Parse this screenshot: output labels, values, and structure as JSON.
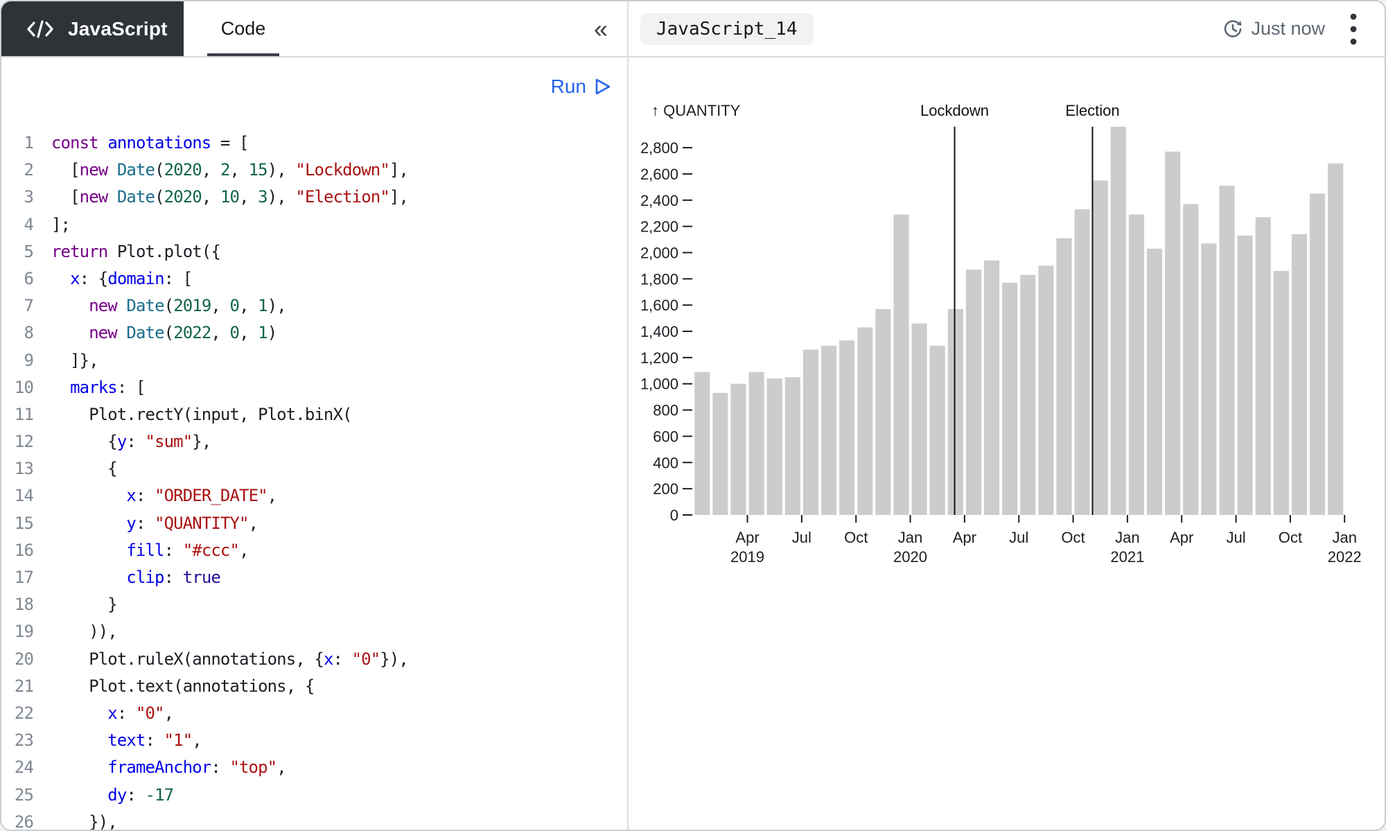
{
  "header": {
    "badge_label": "JavaScript",
    "tab_label": "Code",
    "collapse_glyph": "«",
    "cell_title": "JavaScript_14",
    "timestamp": "Just now"
  },
  "editor": {
    "run_label": "Run",
    "lines": [
      {
        "n": "1",
        "t": [
          [
            "k",
            "const"
          ],
          [
            "p",
            " "
          ],
          [
            "b",
            "annotations"
          ],
          [
            "p",
            " = ["
          ]
        ]
      },
      {
        "n": "2",
        "t": [
          [
            "p",
            "  ["
          ],
          [
            "k",
            "new"
          ],
          [
            "p",
            " "
          ],
          [
            "t2",
            "Date"
          ],
          [
            "p",
            "("
          ],
          [
            "num",
            "2020"
          ],
          [
            "p",
            ", "
          ],
          [
            "num",
            "2"
          ],
          [
            "p",
            ", "
          ],
          [
            "num",
            "15"
          ],
          [
            "p",
            "), "
          ],
          [
            "s",
            "\"Lockdown\""
          ],
          [
            "p",
            "],"
          ]
        ]
      },
      {
        "n": "3",
        "t": [
          [
            "p",
            "  ["
          ],
          [
            "k",
            "new"
          ],
          [
            "p",
            " "
          ],
          [
            "t2",
            "Date"
          ],
          [
            "p",
            "("
          ],
          [
            "num",
            "2020"
          ],
          [
            "p",
            ", "
          ],
          [
            "num",
            "10"
          ],
          [
            "p",
            ", "
          ],
          [
            "num",
            "3"
          ],
          [
            "p",
            "), "
          ],
          [
            "s",
            "\"Election\""
          ],
          [
            "p",
            "],"
          ]
        ]
      },
      {
        "n": "4",
        "t": [
          [
            "p",
            "];"
          ]
        ]
      },
      {
        "n": "5",
        "t": [
          [
            "k",
            "return"
          ],
          [
            "p",
            " Plot.plot({"
          ]
        ]
      },
      {
        "n": "6",
        "t": [
          [
            "p",
            "  "
          ],
          [
            "b",
            "x"
          ],
          [
            "p",
            ": {"
          ],
          [
            "b",
            "domain"
          ],
          [
            "p",
            ": ["
          ]
        ]
      },
      {
        "n": "7",
        "t": [
          [
            "p",
            "    "
          ],
          [
            "k",
            "new"
          ],
          [
            "p",
            " "
          ],
          [
            "t2",
            "Date"
          ],
          [
            "p",
            "("
          ],
          [
            "num",
            "2019"
          ],
          [
            "p",
            ", "
          ],
          [
            "num",
            "0"
          ],
          [
            "p",
            ", "
          ],
          [
            "num",
            "1"
          ],
          [
            "p",
            "),"
          ]
        ]
      },
      {
        "n": "8",
        "t": [
          [
            "p",
            "    "
          ],
          [
            "k",
            "new"
          ],
          [
            "p",
            " "
          ],
          [
            "t2",
            "Date"
          ],
          [
            "p",
            "("
          ],
          [
            "num",
            "2022"
          ],
          [
            "p",
            ", "
          ],
          [
            "num",
            "0"
          ],
          [
            "p",
            ", "
          ],
          [
            "num",
            "1"
          ],
          [
            "p",
            ")"
          ]
        ]
      },
      {
        "n": "9",
        "t": [
          [
            "p",
            "  ]},"
          ]
        ]
      },
      {
        "n": "10",
        "t": [
          [
            "p",
            "  "
          ],
          [
            "b",
            "marks"
          ],
          [
            "p",
            ": ["
          ]
        ]
      },
      {
        "n": "11",
        "t": [
          [
            "p",
            "    Plot.rectY(input, Plot.binX("
          ]
        ]
      },
      {
        "n": "12",
        "t": [
          [
            "p",
            "      {"
          ],
          [
            "b",
            "y"
          ],
          [
            "p",
            ": "
          ],
          [
            "s",
            "\"sum\""
          ],
          [
            "p",
            "},"
          ]
        ]
      },
      {
        "n": "13",
        "t": [
          [
            "p",
            "      {"
          ]
        ]
      },
      {
        "n": "14",
        "t": [
          [
            "p",
            "        "
          ],
          [
            "b",
            "x"
          ],
          [
            "p",
            ": "
          ],
          [
            "s",
            "\"ORDER_DATE\""
          ],
          [
            "p",
            ","
          ]
        ]
      },
      {
        "n": "15",
        "t": [
          [
            "p",
            "        "
          ],
          [
            "b",
            "y"
          ],
          [
            "p",
            ": "
          ],
          [
            "s",
            "\"QUANTITY\""
          ],
          [
            "p",
            ","
          ]
        ]
      },
      {
        "n": "16",
        "t": [
          [
            "p",
            "        "
          ],
          [
            "b",
            "fill"
          ],
          [
            "p",
            ": "
          ],
          [
            "s",
            "\"#ccc\""
          ],
          [
            "p",
            ","
          ]
        ]
      },
      {
        "n": "17",
        "t": [
          [
            "p",
            "        "
          ],
          [
            "b",
            "clip"
          ],
          [
            "p",
            ": "
          ],
          [
            "a",
            "true"
          ]
        ]
      },
      {
        "n": "18",
        "t": [
          [
            "p",
            "      }"
          ]
        ]
      },
      {
        "n": "19",
        "t": [
          [
            "p",
            "    )),"
          ]
        ]
      },
      {
        "n": "20",
        "t": [
          [
            "p",
            "    Plot.ruleX(annotations, {"
          ],
          [
            "b",
            "x"
          ],
          [
            "p",
            ": "
          ],
          [
            "s",
            "\"0\""
          ],
          [
            "p",
            "}),"
          ]
        ]
      },
      {
        "n": "21",
        "t": [
          [
            "p",
            "    Plot.text(annotations, {"
          ]
        ]
      },
      {
        "n": "22",
        "t": [
          [
            "p",
            "      "
          ],
          [
            "b",
            "x"
          ],
          [
            "p",
            ": "
          ],
          [
            "s",
            "\"0\""
          ],
          [
            "p",
            ","
          ]
        ]
      },
      {
        "n": "23",
        "t": [
          [
            "p",
            "      "
          ],
          [
            "b",
            "text"
          ],
          [
            "p",
            ": "
          ],
          [
            "s",
            "\"1\""
          ],
          [
            "p",
            ","
          ]
        ]
      },
      {
        "n": "24",
        "t": [
          [
            "p",
            "      "
          ],
          [
            "b",
            "frameAnchor"
          ],
          [
            "p",
            ": "
          ],
          [
            "s",
            "\"top\""
          ],
          [
            "p",
            ","
          ]
        ]
      },
      {
        "n": "25",
        "t": [
          [
            "p",
            "      "
          ],
          [
            "b",
            "dy"
          ],
          [
            "p",
            ": "
          ],
          [
            "num",
            "-17"
          ]
        ]
      },
      {
        "n": "26",
        "t": [
          [
            "p",
            "    }),"
          ]
        ]
      }
    ]
  },
  "chart_data": {
    "type": "bar",
    "title": "",
    "ylabel": "↑ QUANTITY",
    "bar_fill": "#ccc",
    "bin": "month",
    "x_domain": [
      "2019-01-01",
      "2022-01-01"
    ],
    "ylim": [
      0,
      2960
    ],
    "grid": false,
    "categories": [
      "2019-01",
      "2019-02",
      "2019-03",
      "2019-04",
      "2019-05",
      "2019-06",
      "2019-07",
      "2019-08",
      "2019-09",
      "2019-10",
      "2019-11",
      "2019-12",
      "2020-01",
      "2020-02",
      "2020-03",
      "2020-04",
      "2020-05",
      "2020-06",
      "2020-07",
      "2020-08",
      "2020-09",
      "2020-10",
      "2020-11",
      "2020-12",
      "2021-01",
      "2021-02",
      "2021-03",
      "2021-04",
      "2021-05",
      "2021-06",
      "2021-07",
      "2021-08",
      "2021-09",
      "2021-10",
      "2021-11",
      "2021-12"
    ],
    "values": [
      1090,
      930,
      1000,
      1090,
      1040,
      1050,
      1260,
      1290,
      1330,
      1430,
      1570,
      2290,
      1460,
      1290,
      1570,
      1870,
      1940,
      1770,
      1830,
      1900,
      2110,
      2330,
      2550,
      2960,
      2290,
      2030,
      2770,
      2370,
      2070,
      2510,
      2130,
      2270,
      1860,
      2140,
      2450,
      2680
    ],
    "y_ticks": [
      0,
      200,
      400,
      600,
      800,
      1000,
      1200,
      1400,
      1600,
      1800,
      2000,
      2200,
      2400,
      2600,
      2800
    ],
    "x_ticks": [
      {
        "m": 3,
        "label": "Apr",
        "year": "2019"
      },
      {
        "m": 6,
        "label": "Jul"
      },
      {
        "m": 9,
        "label": "Oct"
      },
      {
        "m": 12,
        "label": "Jan",
        "year": "2020"
      },
      {
        "m": 15,
        "label": "Apr"
      },
      {
        "m": 18,
        "label": "Jul"
      },
      {
        "m": 21,
        "label": "Oct"
      },
      {
        "m": 24,
        "label": "Jan",
        "year": "2021"
      },
      {
        "m": 27,
        "label": "Apr"
      },
      {
        "m": 30,
        "label": "Jul"
      },
      {
        "m": 33,
        "label": "Oct"
      },
      {
        "m": 36,
        "label": "Jan",
        "year": "2022"
      }
    ],
    "annotations": [
      {
        "label": "Lockdown",
        "date": "2020-03-15",
        "month_offset": 14.45
      },
      {
        "label": "Election",
        "date": "2020-11-03",
        "month_offset": 22.07
      }
    ],
    "legend": null
  },
  "colors": {
    "accent_blue": "#2563eb",
    "badge_bg": "#2e3338",
    "bar_fill": "#cccccc",
    "annotation_rule": "#111111",
    "code_keyword": "#770088",
    "code_name": "#0000e8",
    "code_string": "#aa1111",
    "code_number": "#116644",
    "code_type": "#1a6e8c",
    "code_atom": "#221199",
    "muted_text": "#5d6672"
  }
}
